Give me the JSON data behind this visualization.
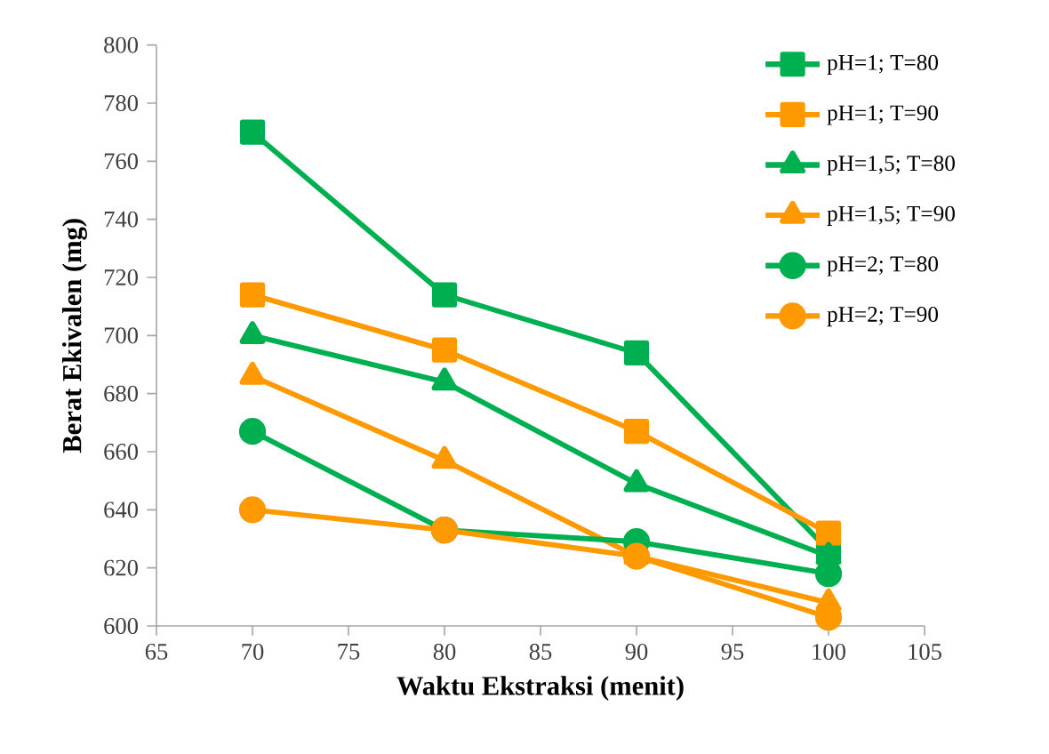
{
  "chart_data": {
    "type": "line",
    "xlabel": "Waktu Ekstraksi (menit)",
    "ylabel": "Berat Ekivalen (mg)",
    "xlim": [
      65,
      105
    ],
    "xticks": [
      65,
      70,
      75,
      80,
      85,
      90,
      95,
      100,
      105
    ],
    "ylim": [
      600,
      800
    ],
    "yticks": [
      600,
      620,
      640,
      660,
      680,
      700,
      720,
      740,
      760,
      780,
      800
    ],
    "x": [
      70,
      80,
      90,
      100
    ],
    "grid": false,
    "legend": "top right",
    "series": [
      {
        "name": "pH=1; T=80",
        "color": "#00b050",
        "marker": "square",
        "values": [
          770,
          714,
          694,
          626
        ]
      },
      {
        "name": "pH=1; T=90",
        "color": "#ff9900",
        "marker": "square",
        "values": [
          714,
          695,
          667,
          632
        ]
      },
      {
        "name": "pH=1,5; T=80",
        "color": "#00b050",
        "marker": "triangle",
        "values": [
          700,
          684,
          649,
          624
        ]
      },
      {
        "name": "pH=1,5; T=90",
        "color": "#ff9900",
        "marker": "triangle",
        "values": [
          686,
          657,
          624,
          608
        ]
      },
      {
        "name": "pH=2; T=80",
        "color": "#00b050",
        "marker": "circle",
        "values": [
          667,
          633,
          629,
          618
        ]
      },
      {
        "name": "pH=2; T=90",
        "color": "#ff9900",
        "marker": "circle",
        "values": [
          640,
          633,
          624,
          603
        ]
      }
    ]
  }
}
